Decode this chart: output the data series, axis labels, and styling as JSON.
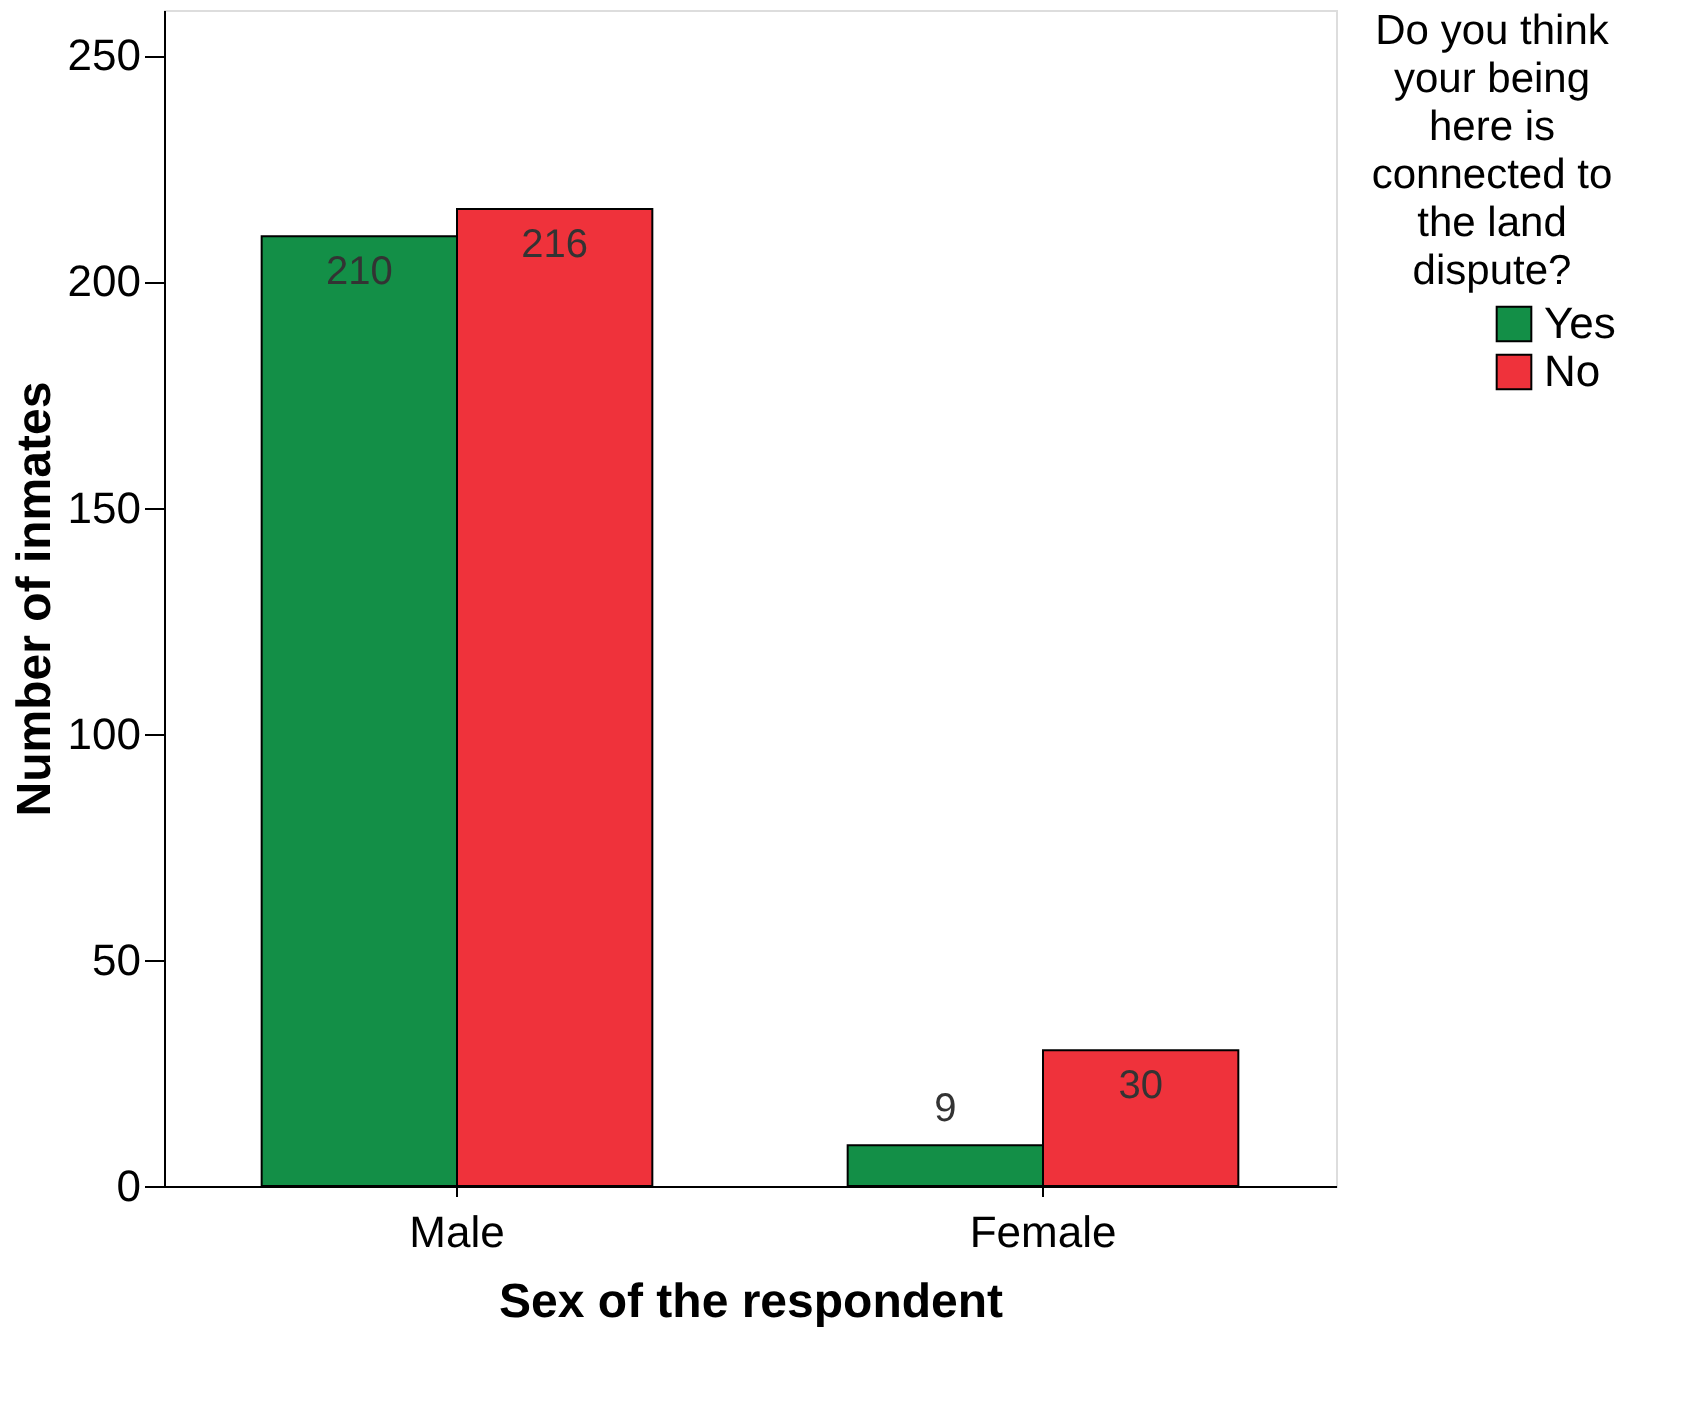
{
  "chart_data": {
    "type": "bar",
    "xlabel": "Sex of the respondent",
    "ylabel": "Number of inmates",
    "legend_title": "Do you think your being here is connected to the land dispute?",
    "categories": [
      "Male",
      "Female"
    ],
    "series": [
      {
        "name": "Yes",
        "color": "#138f47",
        "values": [
          210,
          9
        ]
      },
      {
        "name": "No",
        "color": "#ef323b",
        "values": [
          216,
          30
        ]
      }
    ],
    "ylim": [
      0,
      260
    ],
    "yticks": [
      0,
      50,
      100,
      150,
      200,
      250
    ],
    "grid": false,
    "legend": "right",
    "data_labels": true
  }
}
